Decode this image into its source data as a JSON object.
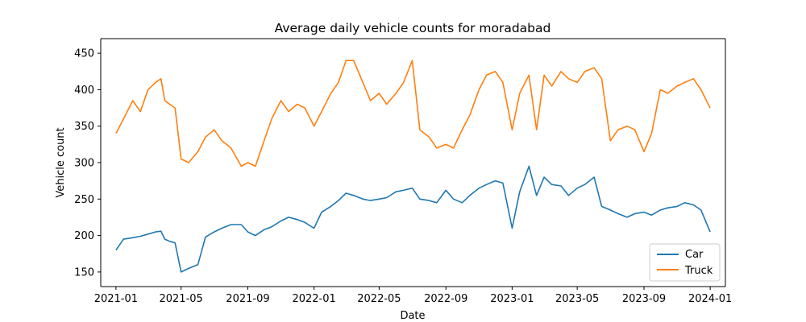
{
  "chart_data": {
    "type": "line",
    "title": "Average daily vehicle counts for moradabad",
    "xlabel": "Date",
    "ylabel": "Vehicle count",
    "xlim": [
      "2020-12-04",
      "2024-01-29"
    ],
    "ylim": [
      130,
      470
    ],
    "x_ticks": [
      "2021-01",
      "2021-05",
      "2021-09",
      "2022-01",
      "2022-05",
      "2022-09",
      "2023-01",
      "2023-05",
      "2023-09",
      "2024-01"
    ],
    "y_ticks": [
      150,
      200,
      250,
      300,
      350,
      400,
      450
    ],
    "legend_position": "lower-right",
    "grid": false,
    "series": [
      {
        "name": "Car",
        "color": "#1f77b4",
        "x": [
          "2021-01-01",
          "2021-01-15",
          "2021-02-01",
          "2021-02-15",
          "2021-03-01",
          "2021-03-15",
          "2021-03-25",
          "2021-04-01",
          "2021-04-10",
          "2021-04-20",
          "2021-05-01",
          "2021-05-15",
          "2021-06-01",
          "2021-06-15",
          "2021-07-01",
          "2021-07-15",
          "2021-08-01",
          "2021-08-20",
          "2021-09-01",
          "2021-09-15",
          "2021-10-01",
          "2021-10-15",
          "2021-11-01",
          "2021-11-15",
          "2021-12-01",
          "2021-12-15",
          "2022-01-01",
          "2022-01-15",
          "2022-02-01",
          "2022-02-15",
          "2022-03-01",
          "2022-03-15",
          "2022-04-01",
          "2022-04-15",
          "2022-05-01",
          "2022-05-15",
          "2022-06-01",
          "2022-06-15",
          "2022-07-01",
          "2022-07-15",
          "2022-08-01",
          "2022-08-15",
          "2022-09-01",
          "2022-09-15",
          "2022-10-01",
          "2022-10-15",
          "2022-11-01",
          "2022-11-15",
          "2022-12-01",
          "2022-12-15",
          "2023-01-01",
          "2023-01-15",
          "2023-02-01",
          "2023-02-15",
          "2023-03-01",
          "2023-03-15",
          "2023-04-01",
          "2023-04-15",
          "2023-05-01",
          "2023-05-15",
          "2023-06-01",
          "2023-06-15",
          "2023-07-01",
          "2023-07-15",
          "2023-08-01",
          "2023-08-15",
          "2023-09-01",
          "2023-09-15",
          "2023-10-01",
          "2023-10-15",
          "2023-11-01",
          "2023-11-15",
          "2023-12-01",
          "2023-12-15",
          "2024-01-01"
        ],
        "values": [
          180,
          195,
          197,
          199,
          202,
          205,
          206,
          195,
          192,
          190,
          150,
          155,
          160,
          198,
          205,
          210,
          215,
          215,
          205,
          200,
          208,
          212,
          220,
          225,
          222,
          218,
          210,
          232,
          240,
          248,
          258,
          255,
          250,
          248,
          250,
          252,
          260,
          262,
          265,
          250,
          248,
          245,
          262,
          250,
          245,
          255,
          265,
          270,
          275,
          272,
          210,
          260,
          295,
          255,
          280,
          270,
          268,
          255,
          265,
          270,
          280,
          240,
          235,
          230,
          225,
          230,
          232,
          228,
          235,
          238,
          240,
          245,
          242,
          235,
          205
        ]
      },
      {
        "name": "Truck",
        "color": "#ff7f0e",
        "x": [
          "2021-01-01",
          "2021-01-15",
          "2021-02-01",
          "2021-02-15",
          "2021-03-01",
          "2021-03-15",
          "2021-03-25",
          "2021-04-01",
          "2021-04-10",
          "2021-04-20",
          "2021-05-01",
          "2021-05-15",
          "2021-06-01",
          "2021-06-15",
          "2021-07-01",
          "2021-07-15",
          "2021-08-01",
          "2021-08-20",
          "2021-09-01",
          "2021-09-15",
          "2021-10-01",
          "2021-10-15",
          "2021-11-01",
          "2021-11-15",
          "2021-12-01",
          "2021-12-15",
          "2022-01-01",
          "2022-01-15",
          "2022-02-01",
          "2022-02-15",
          "2022-03-01",
          "2022-03-15",
          "2022-04-01",
          "2022-04-15",
          "2022-05-01",
          "2022-05-15",
          "2022-06-01",
          "2022-06-15",
          "2022-07-01",
          "2022-07-15",
          "2022-08-01",
          "2022-08-15",
          "2022-09-01",
          "2022-09-15",
          "2022-10-01",
          "2022-10-15",
          "2022-11-01",
          "2022-11-15",
          "2022-12-01",
          "2022-12-15",
          "2023-01-01",
          "2023-01-15",
          "2023-02-01",
          "2023-02-15",
          "2023-03-01",
          "2023-03-15",
          "2023-04-01",
          "2023-04-15",
          "2023-05-01",
          "2023-05-15",
          "2023-06-01",
          "2023-06-15",
          "2023-07-01",
          "2023-07-15",
          "2023-08-01",
          "2023-08-15",
          "2023-09-01",
          "2023-09-15",
          "2023-10-01",
          "2023-10-15",
          "2023-11-01",
          "2023-11-15",
          "2023-12-01",
          "2023-12-15",
          "2024-01-01"
        ],
        "values": [
          340,
          360,
          385,
          370,
          400,
          410,
          415,
          385,
          380,
          375,
          305,
          300,
          315,
          335,
          345,
          330,
          320,
          295,
          300,
          295,
          330,
          360,
          385,
          370,
          380,
          375,
          350,
          370,
          395,
          410,
          440,
          440,
          410,
          385,
          395,
          380,
          395,
          410,
          440,
          345,
          335,
          320,
          325,
          320,
          345,
          365,
          400,
          420,
          425,
          410,
          345,
          395,
          420,
          345,
          420,
          405,
          425,
          415,
          410,
          425,
          430,
          415,
          330,
          345,
          350,
          345,
          315,
          340,
          400,
          395,
          405,
          410,
          415,
          400,
          375
        ]
      }
    ]
  }
}
